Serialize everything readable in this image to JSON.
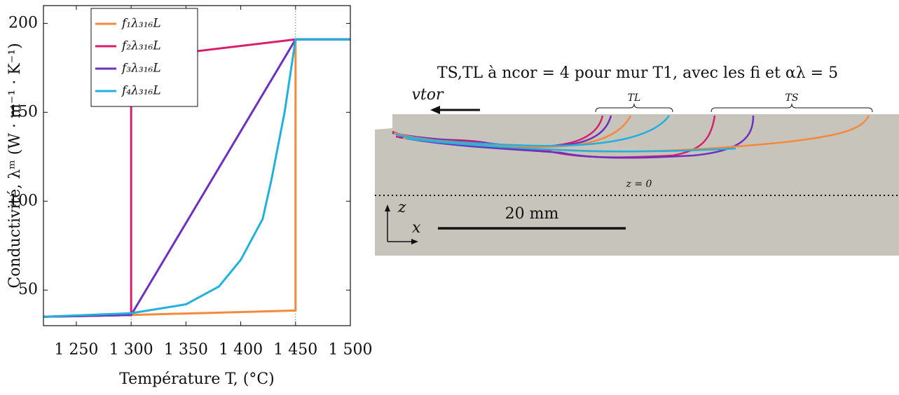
{
  "chart_data": {
    "type": "line",
    "xlabel": "Température T, (°C)",
    "ylabel": "Conductivité, λᵐ (W · m⁻¹ · K⁻¹)",
    "xlim": [
      1220,
      1500
    ],
    "ylim": [
      30,
      210
    ],
    "xticks": [
      {
        "value": 1250,
        "label": "1 250"
      },
      {
        "value": 1300,
        "label": "1 300"
      },
      {
        "value": 1350,
        "label": "1 350"
      },
      {
        "value": 1400,
        "label": "1 400"
      },
      {
        "value": 1450,
        "label": "1 450"
      },
      {
        "value": 1500,
        "label": "1 500"
      }
    ],
    "yticks": [
      50,
      100,
      150,
      200
    ],
    "vlines": [
      1300,
      1450
    ],
    "legend": "upper left",
    "series": [
      {
        "name": "f₁λ₃₁₆L",
        "color": "#f5893b",
        "x": [
          1220,
          1300,
          1450,
          1450,
          1500
        ],
        "values": [
          35,
          36,
          38.5,
          191,
          191
        ]
      },
      {
        "name": "f₂λ₃₁₆L",
        "color": "#d81f6f",
        "x": [
          1220,
          1300,
          1300,
          1450,
          1500
        ],
        "values": [
          35,
          36,
          180,
          191,
          191
        ]
      },
      {
        "name": "f₃λ₃₁₆L",
        "color": "#6f2fbf",
        "x": [
          1220,
          1300,
          1450,
          1500
        ],
        "values": [
          35,
          36,
          191,
          191
        ]
      },
      {
        "name": "f₄λ₃₁₆L",
        "color": "#22b0dd",
        "x": [
          1220,
          1300,
          1350,
          1380,
          1400,
          1420,
          1428,
          1440,
          1450,
          1500
        ],
        "values": [
          35,
          37,
          42,
          52,
          67,
          90,
          112,
          150,
          191,
          191
        ]
      }
    ]
  },
  "diagram": {
    "title": "TS,TL à ncor = 4 pour mur T1, avec les fi et αλ = 5",
    "velocity": "vtor",
    "liquidus": "TL",
    "solidus": "TS",
    "origin": "z = 0",
    "axis_z": "z",
    "axis_x": "x",
    "scale": "20 mm"
  }
}
